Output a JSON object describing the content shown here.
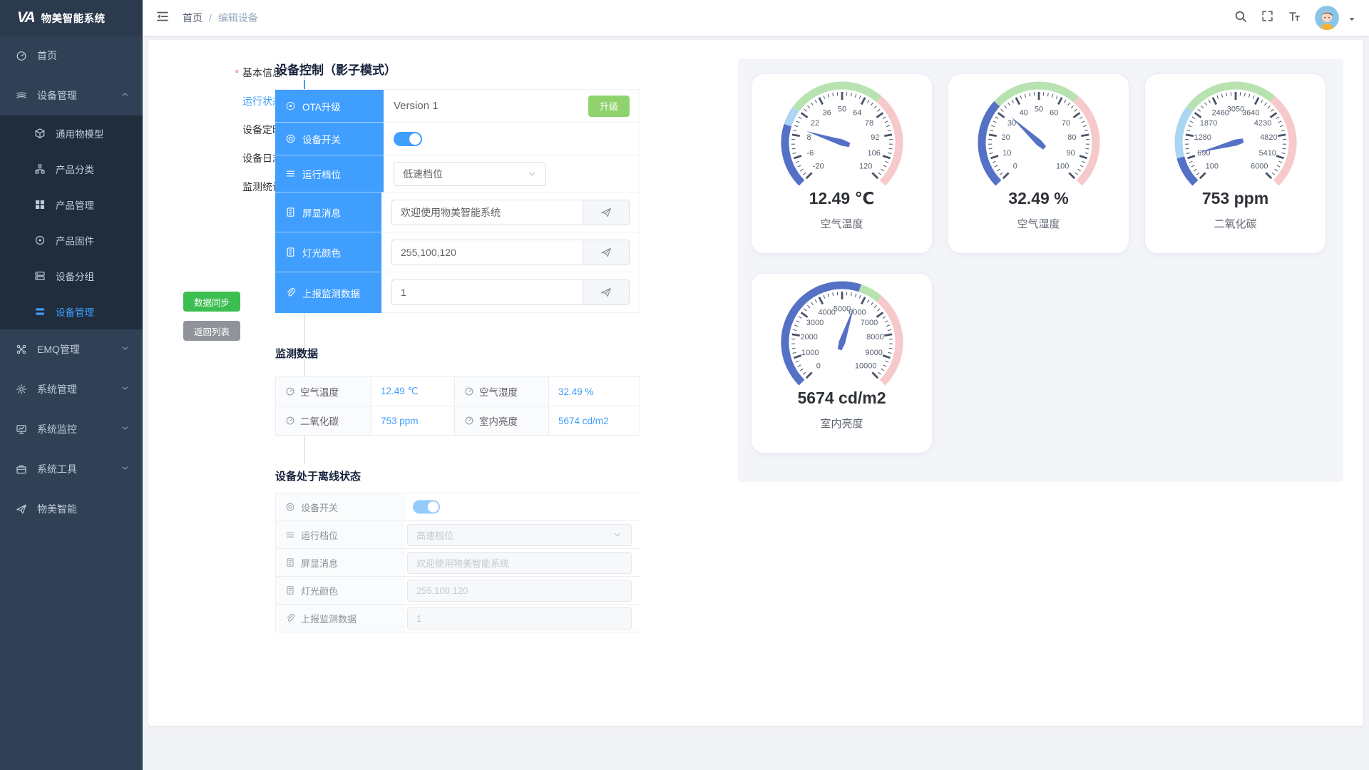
{
  "app": {
    "name": "物美智能系统",
    "logo_text": "VA"
  },
  "sidebar": {
    "items": [
      {
        "key": "home",
        "icon": "dashboard-icon",
        "label": "首页"
      },
      {
        "key": "device-management",
        "icon": "layers-icon",
        "label": "设备管理",
        "expanded": true,
        "children": [
          {
            "key": "common-thing-model",
            "icon": "cube-icon",
            "label": "通用物模型"
          },
          {
            "key": "product-category",
            "icon": "sitemap-icon",
            "label": "产品分类"
          },
          {
            "key": "product-management",
            "icon": "grid-icon",
            "label": "产品管理"
          },
          {
            "key": "product-firmware",
            "icon": "firmware-icon",
            "label": "产品固件"
          },
          {
            "key": "device-group",
            "icon": "group-icon",
            "label": "设备分组"
          },
          {
            "key": "device-management-sub",
            "icon": "list-icon",
            "label": "设备管理",
            "active": true
          }
        ]
      },
      {
        "key": "emq-management",
        "icon": "cluster-icon",
        "label": "EMQ管理",
        "collapsible": true
      },
      {
        "key": "system-management",
        "icon": "gear-icon",
        "label": "系统管理",
        "collapsible": true
      },
      {
        "key": "system-monitor",
        "icon": "monitor-icon",
        "label": "系统监控",
        "collapsible": true
      },
      {
        "key": "system-tools",
        "icon": "toolbox-icon",
        "label": "系统工具",
        "collapsible": true
      },
      {
        "key": "wumei-smart",
        "icon": "plane-icon",
        "label": "物美智能"
      }
    ]
  },
  "breadcrumb": {
    "items": [
      "首页",
      "编辑设备"
    ],
    "separator": "/"
  },
  "side_tabs": [
    {
      "key": "basic-info",
      "label": "基本信息",
      "required": true
    },
    {
      "key": "running-status",
      "label": "运行状态",
      "active": true
    },
    {
      "key": "device-timing",
      "label": "设备定时"
    },
    {
      "key": "device-log",
      "label": "设备日志"
    },
    {
      "key": "monitor-stats",
      "label": "监测统计"
    }
  ],
  "side_actions": [
    {
      "key": "data-sync",
      "label": "数据同步",
      "type": "success"
    },
    {
      "key": "back-to-list",
      "label": "返回列表",
      "type": "info"
    }
  ],
  "device_control": {
    "title": "设备控制（影子模式）",
    "rows": [
      {
        "key": "ota-upgrade",
        "icon": "ota-icon",
        "label": "OTA升级",
        "type": "text-action",
        "value": "Version 1",
        "action": "升级"
      },
      {
        "key": "device-switch",
        "icon": "switch-icon",
        "label": "设备开关",
        "type": "switch",
        "on": true
      },
      {
        "key": "run-gear",
        "icon": "levels-icon",
        "label": "运行档位",
        "type": "select",
        "value": "低速档位"
      },
      {
        "key": "screen-message",
        "icon": "screen-icon",
        "label": "屏显消息",
        "type": "input-send",
        "value": "欢迎使用物美智能系统"
      },
      {
        "key": "light-color",
        "icon": "doc-icon",
        "label": "灯光颜色",
        "type": "input-send",
        "value": "255,100,120"
      },
      {
        "key": "report-monitor-data",
        "icon": "paperclip-icon",
        "label": "上报监测数据",
        "type": "input-send",
        "value": "1"
      }
    ]
  },
  "monitor": {
    "title": "监测数据",
    "rows": [
      [
        {
          "label": "空气温度",
          "value": "12.49 ℃"
        },
        {
          "label": "空气湿度",
          "value": "32.49 %"
        }
      ],
      [
        {
          "label": "二氧化碳",
          "value": "753 ppm"
        },
        {
          "label": "室内亮度",
          "value": "5674 cd/m2"
        }
      ]
    ]
  },
  "offline": {
    "title": "设备处于离线状态",
    "rows": [
      {
        "key": "device-switch",
        "icon": "switch-icon",
        "label": "设备开关",
        "type": "switch",
        "on": true
      },
      {
        "key": "run-gear",
        "icon": "levels-icon",
        "label": "运行档位",
        "type": "select",
        "value": "高速档位"
      },
      {
        "key": "screen-message",
        "icon": "screen-icon",
        "label": "屏显消息",
        "type": "input",
        "value": "欢迎使用物美智能系统"
      },
      {
        "key": "light-color",
        "icon": "doc-icon",
        "label": "灯光颜色",
        "type": "input",
        "value": "255,100,120"
      },
      {
        "key": "report-monitor-data",
        "icon": "paperclip-icon",
        "label": "上报监测数据",
        "type": "input",
        "value": "1"
      }
    ]
  },
  "chart_data": [
    {
      "type": "gauge",
      "title": "空气温度",
      "value": 12.49,
      "unit": "℃",
      "display": "12.49 ℃",
      "min": -20,
      "max": 120,
      "tick_labels": [
        -20,
        -6,
        8,
        22,
        36,
        50,
        64,
        78,
        92,
        106,
        120
      ],
      "color_zones": [
        {
          "to": 0.3,
          "color": "#abd5f2"
        },
        {
          "to": 0.65,
          "color": "#b9e2b1"
        },
        {
          "to": 1,
          "color": "#f6c9cb"
        }
      ]
    },
    {
      "type": "gauge",
      "title": "空气湿度",
      "value": 32.49,
      "unit": "%",
      "display": "32.49 %",
      "min": 0,
      "max": 100,
      "tick_labels": [
        0,
        10,
        20,
        30,
        40,
        50,
        60,
        70,
        80,
        90,
        100
      ],
      "color_zones": [
        {
          "to": 0.3,
          "color": "#abd5f2"
        },
        {
          "to": 0.65,
          "color": "#b9e2b1"
        },
        {
          "to": 1,
          "color": "#f6c9cb"
        }
      ]
    },
    {
      "type": "gauge",
      "title": "二氧化碳",
      "value": 753,
      "unit": "ppm",
      "display": "753 ppm",
      "min": 100,
      "max": 6000,
      "tick_labels": [
        100,
        690,
        1280,
        1870,
        2460,
        3050,
        3640,
        4230,
        4820,
        5410,
        6000
      ],
      "color_zones": [
        {
          "to": 0.3,
          "color": "#abd5f2"
        },
        {
          "to": 0.65,
          "color": "#b9e2b1"
        },
        {
          "to": 1,
          "color": "#f6c9cb"
        }
      ]
    },
    {
      "type": "gauge",
      "title": "室内亮度",
      "value": 5674,
      "unit": "cd/m2",
      "display": "5674 cd/m2",
      "min": 0,
      "max": 10000,
      "tick_labels": [
        0,
        1000,
        2000,
        3000,
        4000,
        5000,
        6000,
        7000,
        8000,
        9000,
        10000
      ],
      "color_zones": [
        {
          "to": 0.3,
          "color": "#abd5f2"
        },
        {
          "to": 0.65,
          "color": "#b9e2b1"
        },
        {
          "to": 1,
          "color": "#f6c9cb"
        }
      ]
    }
  ],
  "gauge_style": {
    "progress_color": "#5571c5",
    "needle_color": "#5571c5",
    "tick_color": "#4a5469",
    "label_color": "#57606f"
  },
  "colors": {
    "primary": "#409eff",
    "sidebar_bg": "#304156",
    "submenu_bg": "#1f2d3d",
    "success": "#3cbe50",
    "info": "#909399",
    "upgrade": "#8fd36f",
    "link": "#409eff"
  }
}
